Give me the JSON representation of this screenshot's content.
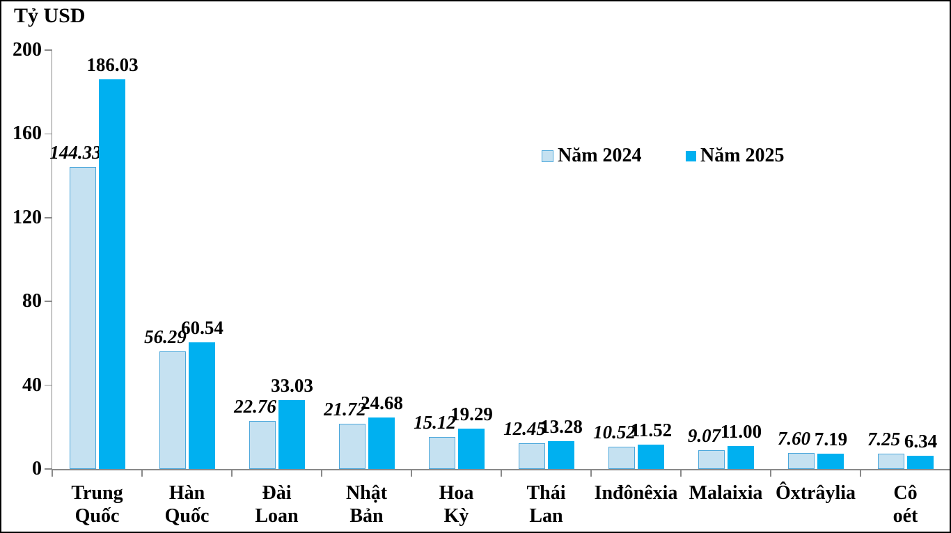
{
  "title": "Tỷ USD",
  "legend": {
    "items": [
      {
        "label": "Năm 2024"
      },
      {
        "label": "Năm 2025"
      }
    ]
  },
  "chart_data": {
    "type": "bar",
    "title": "Tỷ USD",
    "categories": [
      "Trung Quốc",
      "Hàn Quốc",
      "Đài Loan",
      "Nhật Bản",
      "Hoa Kỳ",
      "Thái Lan",
      "Inđônêxia",
      "Malaixia",
      "Ôxtrâylia",
      "Cô oét"
    ],
    "category_labels_2line": [
      "Trung\nQuốc",
      "Hàn\nQuốc",
      "Đài\nLoan",
      "Nhật\nBản",
      "Hoa\nKỳ",
      "Thái\nLan",
      "Inđônêxia",
      "Malaixia",
      "Ôxtrâylia",
      "Cô\noét"
    ],
    "series": [
      {
        "name": "Năm 2024",
        "values": [
          144.33,
          56.29,
          22.76,
          21.72,
          15.12,
          12.45,
          10.52,
          9.07,
          7.6,
          7.25
        ],
        "fill": "#C5E1F1",
        "border": "#4BA7DB",
        "label_style": "bold-italic"
      },
      {
        "name": "Năm 2025",
        "values": [
          186.03,
          60.54,
          33.03,
          24.68,
          19.29,
          13.28,
          11.52,
          11.0,
          7.19,
          6.34
        ],
        "fill": "#00B0F0",
        "border": "#00B0F0",
        "label_style": "bold"
      }
    ],
    "ylabel": "Tỷ USD",
    "xlabel": "",
    "ylim": [
      0,
      200
    ],
    "yticks": [
      0,
      40,
      80,
      120,
      160,
      200
    ],
    "grid": false,
    "value_labels": true,
    "value_label_decimals": 2,
    "legend_position": "inside-top-center-right",
    "axis_color": "#898989",
    "text_color": "#000000",
    "frame_color": "#000000"
  }
}
